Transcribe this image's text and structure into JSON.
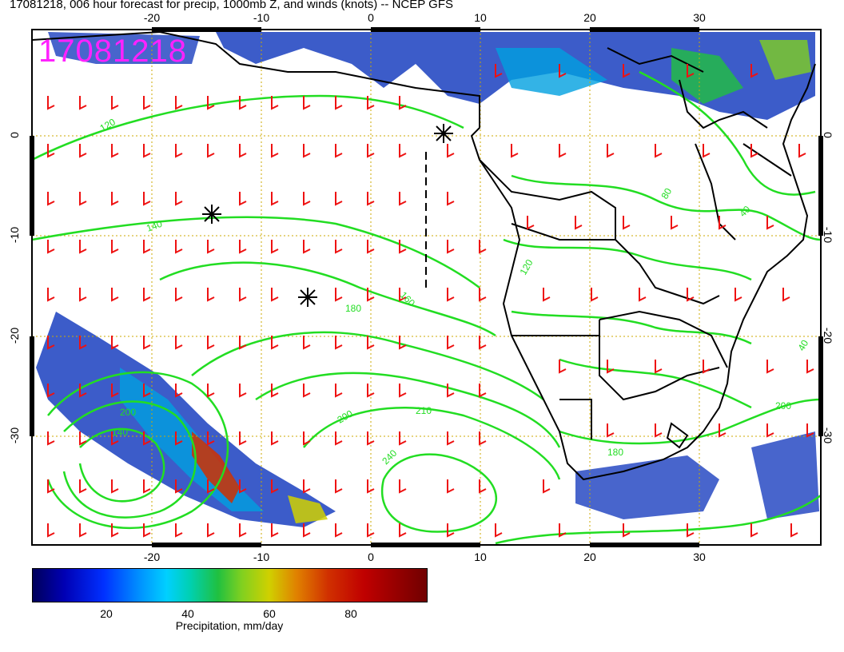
{
  "title": "17081218, 006 hour forecast for precip, 1000mb Z, and winds (knots) -- NCEP GFS",
  "stamp": "17081218",
  "axes": {
    "lon_ticks_top": [
      "-20",
      "-10",
      "0",
      "10",
      "20",
      "30"
    ],
    "lon_ticks_bottom": [
      "-20",
      "-10",
      "0",
      "10",
      "20",
      "30"
    ],
    "lat_ticks_left": [
      "0",
      "-10",
      "-20",
      "-30"
    ],
    "lat_ticks_right": [
      "0",
      "-10",
      "-20",
      "-30"
    ]
  },
  "contour_labels": [
    "120",
    "140",
    "160",
    "180",
    "200",
    "210",
    "240",
    "120",
    "140",
    "180",
    "200",
    "200",
    "80",
    "40",
    "40"
  ],
  "colorbar": {
    "ticks": [
      "20",
      "40",
      "60",
      "80"
    ],
    "label": "Precipitation, mm/day",
    "colors": [
      "#00005a",
      "#0000b4",
      "#0090ff",
      "#00d0b0",
      "#80d020",
      "#d0d000",
      "#e08000",
      "#c00000",
      "#700000"
    ]
  },
  "colors": {
    "contour": "#22dd22",
    "barb": "#ee1111",
    "coast": "#000000",
    "grid": "#ccaa00",
    "stamp": "#ff22ff"
  }
}
